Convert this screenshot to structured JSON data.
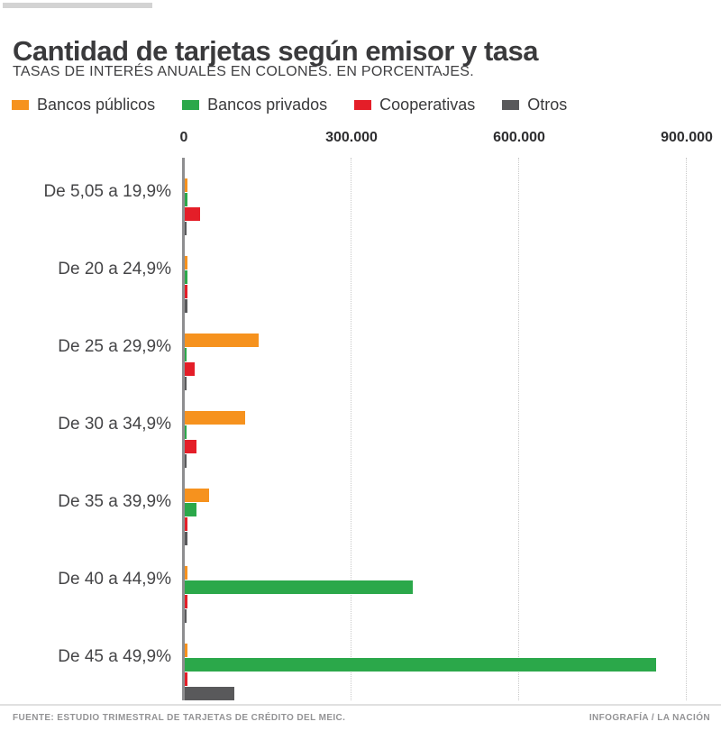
{
  "page": {
    "title": "Cantidad de tarjetas según emisor y tasa",
    "subtitle": "TASAS DE INTERÉS ANUALES EN COLONES. EN PORCENTAJES.",
    "footer_source": "FUENTE: ESTUDIO TRIMESTRAL DE TARJETAS DE CRÉDITO DEL MEIC.",
    "footer_credit": "INFOGRAFÍA / LA NACIÓN"
  },
  "colors": {
    "bancos_publicos": "#F6921E",
    "bancos_privados": "#2BA84A",
    "cooperativas": "#E41E28",
    "otros": "#59595B",
    "axis": "#8E8E90",
    "gridline": "#C9C9C9",
    "title_text": "#3A3A3C",
    "footer_text": "#939395"
  },
  "chart_data": {
    "type": "bar",
    "orientation": "horizontal",
    "title": "Cantidad de tarjetas según emisor y tasa",
    "subtitle": "TASAS DE INTERÉS ANUALES EN COLONES. EN PORCENTAJES.",
    "categories": [
      "De 5,05 a 19,9%",
      "De 20 a 24,9%",
      "De 25 a 29,9%",
      "De 30 a 34,9%",
      "De 35 a 39,9%",
      "De 40 a 44,9%",
      "De 45 a 49,9%"
    ],
    "series": [
      {
        "name": "Bancos públicos",
        "color": "#F6921E",
        "values": [
          5000,
          5500,
          132000,
          108000,
          43000,
          4500,
          5000
        ]
      },
      {
        "name": "Bancos privados",
        "color": "#2BA84A",
        "values": [
          4500,
          5500,
          3500,
          3500,
          21500,
          408000,
          843000
        ]
      },
      {
        "name": "Cooperativas",
        "color": "#E41E28",
        "values": [
          27000,
          4500,
          17000,
          21000,
          4500,
          4500,
          5000
        ]
      },
      {
        "name": "Otros",
        "color": "#59595B",
        "values": [
          3500,
          4500,
          2500,
          3000,
          4500,
          3000,
          89000
        ]
      }
    ],
    "x_ticks": [
      0,
      300000,
      600000,
      900000
    ],
    "x_tick_labels": [
      "0",
      "300.000",
      "600.000",
      "900.000"
    ],
    "xlim": [
      0,
      945000
    ],
    "legend_position": "top",
    "grid": "vertical-dotted",
    "unit": "tarjetas"
  }
}
